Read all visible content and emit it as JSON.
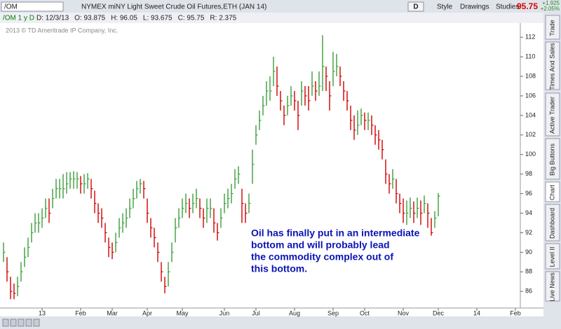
{
  "header": {
    "symbol": "/OM",
    "description": "NYMEX miNY Light Sweet Crude Oil Futures,ETH (JAN 14)",
    "period_button": "D",
    "buttons": [
      "Style",
      "Drawings",
      "Studies"
    ],
    "last": "95.75",
    "change": "+1.925",
    "change_pct": "+2.05%"
  },
  "info_bar": {
    "chart_symbol": "/OM 1 y D",
    "fields": [
      "D: 12/3/13",
      "O: 93.875",
      "H: 96.05",
      "L: 93.675",
      "C: 95.75",
      "R: 2.375"
    ]
  },
  "watermark": "2013 © TD Ameritrade IP Company, Inc.",
  "side_tabs": [
    "Trade",
    "Times And Sales",
    "Active Trader",
    "Big Buttons",
    "Chart",
    "Dashboard",
    "Level II",
    "Live News"
  ],
  "chart_data": {
    "type": "ohlc",
    "annotation": [
      "Oil has finally put in an intermediate",
      "bottom and will probably lead",
      "the commodity complex out of",
      "this bottom."
    ],
    "up_color": "#3c9c3c",
    "down_color": "#cc0000",
    "annotation_color": "#0a14b4",
    "ylim": [
      84.3,
      113.3
    ],
    "yticks": [
      86,
      88,
      90,
      92,
      94,
      96,
      98,
      100,
      102,
      104,
      106,
      108,
      110,
      112
    ],
    "categories": [
      null,
      null,
      null,
      null,
      null,
      null,
      null,
      null,
      null,
      null,
      null,
      "13",
      null,
      null,
      null,
      null,
      null,
      null,
      null,
      null,
      null,
      null,
      "Feb",
      null,
      null,
      null,
      null,
      null,
      null,
      null,
      null,
      "Mar",
      null,
      null,
      null,
      null,
      null,
      null,
      null,
      null,
      null,
      "Apr",
      null,
      null,
      null,
      null,
      null,
      null,
      null,
      null,
      null,
      "May",
      null,
      null,
      null,
      null,
      null,
      null,
      null,
      null,
      null,
      null,
      null,
      "Jun",
      null,
      null,
      null,
      null,
      null,
      null,
      null,
      null,
      "Jul",
      null,
      null,
      null,
      null,
      null,
      null,
      null,
      null,
      null,
      null,
      "Aug",
      null,
      null,
      null,
      null,
      null,
      null,
      null,
      null,
      null,
      null,
      "Sep",
      null,
      null,
      null,
      null,
      null,
      null,
      null,
      null,
      "Oct",
      null,
      null,
      null,
      null,
      null,
      null,
      null,
      null,
      null,
      null,
      "Nov",
      null,
      null,
      null,
      null,
      null,
      null,
      null,
      null,
      null,
      "Dec",
      null,
      null,
      null,
      null,
      null,
      null,
      null,
      null,
      null,
      null,
      "14",
      null,
      null,
      null,
      null,
      null,
      null,
      null,
      null,
      null,
      null,
      "Feb",
      null
    ],
    "high": [
      91,
      89.5,
      87.5,
      86.8,
      87.5,
      89,
      90.5,
      91.5,
      93,
      94,
      94,
      94.5,
      95.5,
      95.5,
      96.5,
      97.5,
      97.5,
      98,
      98.2,
      98.2,
      98.3,
      98.2,
      97.8,
      98,
      98.1,
      97.5,
      96.3,
      95,
      94.5,
      93,
      91.5,
      91,
      92,
      93.5,
      94,
      94.5,
      95.5,
      96.5,
      97.3,
      97.5,
      97.3,
      95.5,
      93.5,
      92.5,
      91,
      89,
      87.5,
      89,
      91,
      93.5,
      94.5,
      95.5,
      96,
      95.5,
      96,
      96.5,
      95.5,
      94.5,
      95.5,
      95.5,
      94.5,
      93,
      94.5,
      96,
      96.5,
      97,
      98.5,
      98.8,
      96.5,
      95,
      96,
      100.5,
      103,
      104.5,
      106,
      107.5,
      108,
      110,
      109,
      106.5,
      105,
      106,
      107,
      106.5,
      105.5,
      107.5,
      107,
      107,
      108.5,
      107.5,
      108.5,
      112.2,
      109,
      107.5,
      110.5,
      110.3,
      109,
      107.5,
      106.5,
      105,
      104,
      104.5,
      104.7,
      104.3,
      104.3,
      104,
      103,
      102.5,
      101.5,
      99.5,
      98,
      98.5,
      97.5,
      96,
      95.5,
      95.3,
      95.6,
      95.2,
      95.6,
      95.3,
      95.8,
      95,
      93.5,
      94.2,
      96.05,
      null,
      null,
      null,
      null,
      null,
      null,
      null,
      null,
      null,
      null,
      null,
      null,
      null,
      null,
      null,
      null,
      null,
      null,
      null,
      null,
      null,
      null,
      null
    ],
    "low": [
      89,
      87,
      85.2,
      85.2,
      85.5,
      87,
      88.5,
      89.5,
      91,
      92,
      92,
      92.5,
      93.5,
      93,
      94.5,
      95.5,
      95.5,
      95.5,
      96,
      96.5,
      96.5,
      96.5,
      96,
      96,
      96.5,
      95.5,
      94,
      93,
      92.5,
      91,
      89.5,
      89.3,
      90,
      91.5,
      92,
      92.5,
      93.5,
      94.5,
      95.5,
      96,
      95.5,
      93,
      91.5,
      90.5,
      89,
      87,
      85.8,
      86.5,
      89,
      91,
      92.5,
      93.5,
      94,
      93.5,
      94,
      94.5,
      93.5,
      92.5,
      93,
      93.5,
      92,
      91.2,
      92.5,
      94,
      94.5,
      95,
      96.5,
      97,
      93,
      93,
      94,
      97,
      101,
      102.5,
      104,
      105,
      105.5,
      107,
      106,
      104.5,
      103,
      104,
      105,
      104.5,
      102.5,
      105,
      105,
      104.5,
      106,
      105.5,
      106,
      106.5,
      106.5,
      104.5,
      107,
      108,
      107,
      105.5,
      104.5,
      102.5,
      101.5,
      102,
      103,
      102.5,
      102.5,
      102,
      101,
      100.5,
      99.5,
      97,
      96,
      96.5,
      95,
      94,
      93,
      92.8,
      93.5,
      93,
      93.5,
      92.8,
      94,
      92.5,
      91.7,
      92.5,
      93.675,
      null,
      null,
      null,
      null,
      null,
      null,
      null,
      null,
      null,
      null,
      null,
      null,
      null,
      null,
      null,
      null,
      null,
      null,
      null,
      null,
      null,
      null,
      null
    ],
    "close": [
      90,
      88,
      86,
      85.8,
      86.5,
      88,
      89.5,
      90.5,
      92,
      93,
      93,
      93.5,
      94.5,
      94,
      95.5,
      96.5,
      96.5,
      96.5,
      97,
      97.5,
      97.5,
      97.5,
      97,
      97,
      97.5,
      96.5,
      95,
      94,
      93.5,
      92,
      90.5,
      90,
      91,
      92.5,
      93,
      93.5,
      94.5,
      95.5,
      96.5,
      97,
      96.5,
      94,
      92.5,
      91.5,
      90,
      88,
      86.5,
      88,
      90,
      92.5,
      93.5,
      94.5,
      95,
      94.5,
      95,
      95.5,
      94.5,
      93.5,
      94.5,
      94.5,
      93,
      92,
      93.5,
      95,
      95.5,
      96,
      97.5,
      98,
      95,
      94,
      95,
      99,
      102,
      103.5,
      105,
      106.5,
      106.5,
      108.5,
      107,
      105.5,
      104,
      105,
      106,
      105.5,
      104,
      106.5,
      106,
      105.5,
      107,
      106.5,
      107,
      109,
      108,
      106,
      108.5,
      109,
      108,
      106.5,
      105.5,
      103.5,
      102.5,
      103,
      104,
      103.5,
      103.5,
      103,
      102,
      101.5,
      100.5,
      98,
      97,
      97.5,
      96,
      95,
      94,
      94,
      94.5,
      94,
      94.5,
      94,
      95,
      94,
      92,
      93.5,
      95.75,
      null,
      null,
      null,
      null,
      null,
      null,
      null,
      null,
      null,
      null,
      null,
      null,
      null,
      null,
      null,
      null,
      null,
      null,
      null,
      null,
      null,
      null,
      null
    ]
  }
}
